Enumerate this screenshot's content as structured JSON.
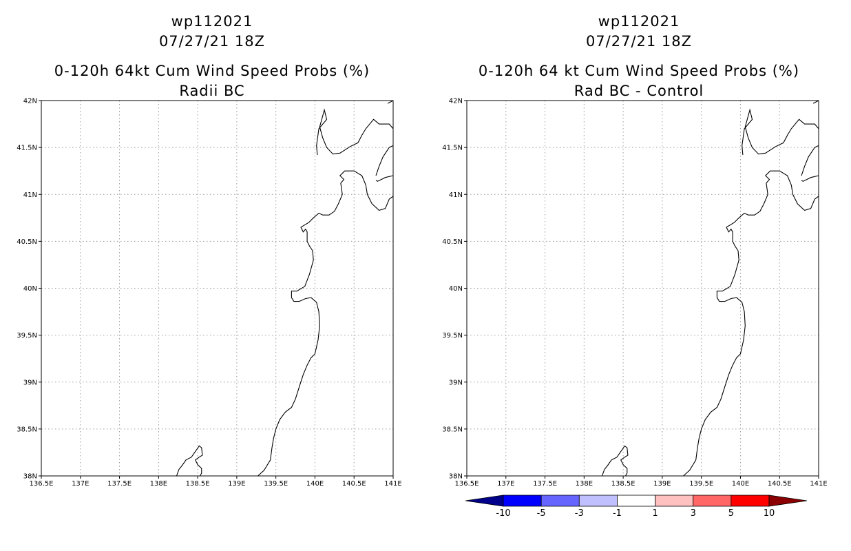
{
  "chart_data": [
    {
      "type": "map",
      "title_lines": [
        "wp112021",
        "07/27/21 18Z",
        "0-120h 64kt Cum Wind Speed Probs (%)",
        "Radii BC"
      ],
      "xlabels": [
        "136.5E",
        "137E",
        "137.5E",
        "138E",
        "138.5E",
        "139E",
        "139.5E",
        "140E",
        "140.5E",
        "141E"
      ],
      "ylabels": [
        "38N",
        "38.5N",
        "39N",
        "39.5N",
        "40N",
        "40.5N",
        "41N",
        "41.5N",
        "42N"
      ],
      "xlim": [
        136.5,
        141
      ],
      "ylim": [
        38,
        42
      ],
      "grid": true,
      "field_values": []
    },
    {
      "type": "map",
      "title_lines": [
        "wp112021",
        "07/27/21 18Z",
        "0-120h 64 kt Cum Wind Speed Probs (%)",
        "Rad BC - Control"
      ],
      "xlabels": [
        "136.5E",
        "137E",
        "137.5E",
        "138E",
        "138.5E",
        "139E",
        "139.5E",
        "140E",
        "140.5E",
        "141E"
      ],
      "ylabels": [
        "38N",
        "38.5N",
        "39N",
        "39.5N",
        "40N",
        "40.5N",
        "41N",
        "41.5N",
        "42N"
      ],
      "xlim": [
        136.5,
        141
      ],
      "ylim": [
        38,
        42
      ],
      "grid": true,
      "field_values": [],
      "colorbar": {
        "labels": [
          "-10",
          "-5",
          "-3",
          "-1",
          "1",
          "3",
          "5",
          "10"
        ],
        "colors": [
          "#00008b",
          "#0000ff",
          "#6666ff",
          "#c0c0ff",
          "#ffffff",
          "#ffc0c0",
          "#ff6666",
          "#ff0000",
          "#8b0000"
        ]
      }
    }
  ],
  "coastline": [
    [
      [
        138.23,
        38.0
      ],
      [
        138.26,
        38.07
      ],
      [
        138.3,
        38.11
      ],
      [
        138.35,
        38.17
      ],
      [
        138.42,
        38.2
      ],
      [
        138.47,
        38.26
      ],
      [
        138.52,
        38.32
      ],
      [
        138.55,
        38.3
      ],
      [
        138.56,
        38.22
      ],
      [
        138.52,
        38.2
      ],
      [
        138.47,
        38.17
      ],
      [
        138.5,
        38.12
      ],
      [
        138.55,
        38.08
      ],
      [
        138.55,
        38.03
      ],
      [
        138.53,
        38.0
      ]
    ],
    [
      [
        139.27,
        38.0
      ],
      [
        139.35,
        38.06
      ],
      [
        139.43,
        38.17
      ],
      [
        139.45,
        38.3
      ],
      [
        139.47,
        38.4
      ],
      [
        139.5,
        38.5
      ],
      [
        139.55,
        38.6
      ],
      [
        139.62,
        38.68
      ],
      [
        139.7,
        38.73
      ],
      [
        139.75,
        38.82
      ],
      [
        139.8,
        38.95
      ],
      [
        139.85,
        39.08
      ],
      [
        139.9,
        39.18
      ],
      [
        139.95,
        39.26
      ],
      [
        140.0,
        39.3
      ],
      [
        140.04,
        39.45
      ],
      [
        140.06,
        39.6
      ],
      [
        140.05,
        39.75
      ],
      [
        140.02,
        39.85
      ],
      [
        139.95,
        39.9
      ],
      [
        139.88,
        39.89
      ],
      [
        139.8,
        39.86
      ],
      [
        139.73,
        39.86
      ],
      [
        139.7,
        39.9
      ],
      [
        139.7,
        39.97
      ],
      [
        139.77,
        39.97
      ],
      [
        139.87,
        40.02
      ],
      [
        139.93,
        40.15
      ],
      [
        139.98,
        40.3
      ],
      [
        139.97,
        40.4
      ],
      [
        139.93,
        40.45
      ],
      [
        139.9,
        40.5
      ],
      [
        139.9,
        40.6
      ],
      [
        139.88,
        40.63
      ],
      [
        139.85,
        40.6
      ],
      [
        139.82,
        40.65
      ],
      [
        139.92,
        40.7
      ],
      [
        139.98,
        40.75
      ],
      [
        140.05,
        40.8
      ],
      [
        140.1,
        40.78
      ],
      [
        140.18,
        40.78
      ],
      [
        140.25,
        40.82
      ],
      [
        140.3,
        40.9
      ],
      [
        140.35,
        41.0
      ],
      [
        140.33,
        41.12
      ],
      [
        140.37,
        41.16
      ],
      [
        140.32,
        41.2
      ],
      [
        140.38,
        41.25
      ],
      [
        140.5,
        41.25
      ],
      [
        140.6,
        41.2
      ],
      [
        140.65,
        41.1
      ],
      [
        140.67,
        41.0
      ],
      [
        140.73,
        40.9
      ],
      [
        140.82,
        40.83
      ],
      [
        140.9,
        40.85
      ],
      [
        140.95,
        40.95
      ],
      [
        141.0,
        40.98
      ]
    ],
    [
      [
        140.03,
        41.42
      ],
      [
        140.02,
        41.52
      ],
      [
        140.05,
        41.7
      ],
      [
        140.15,
        41.8
      ],
      [
        140.12,
        41.9
      ],
      [
        140.06,
        41.72
      ],
      [
        140.1,
        41.6
      ],
      [
        140.15,
        41.5
      ],
      [
        140.23,
        41.43
      ],
      [
        140.32,
        41.44
      ],
      [
        140.45,
        41.51
      ],
      [
        140.55,
        41.55
      ],
      [
        140.6,
        41.63
      ],
      [
        140.65,
        41.7
      ],
      [
        140.75,
        41.8
      ],
      [
        140.82,
        41.75
      ],
      [
        140.95,
        41.75
      ],
      [
        141.0,
        41.7
      ]
    ],
    [
      [
        141.0,
        42.0
      ],
      [
        140.93,
        41.97
      ]
    ],
    [
      [
        140.78,
        41.2
      ],
      [
        140.82,
        41.3
      ],
      [
        140.87,
        41.4
      ],
      [
        140.95,
        41.5
      ],
      [
        141.0,
        41.52
      ]
    ],
    [
      [
        140.78,
        41.15
      ],
      [
        140.8,
        41.14
      ],
      [
        140.85,
        41.16
      ],
      [
        140.9,
        41.18
      ],
      [
        141.0,
        41.2
      ]
    ]
  ]
}
